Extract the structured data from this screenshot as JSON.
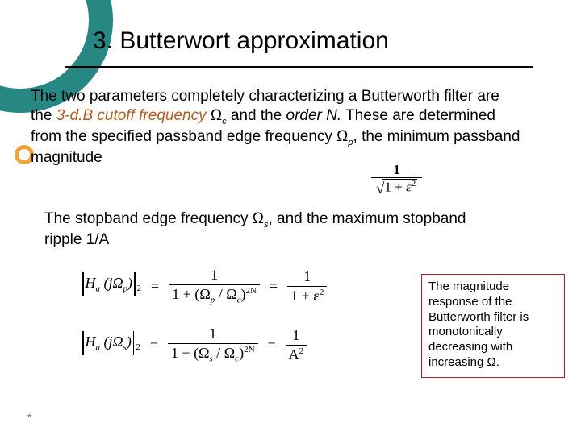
{
  "colors": {
    "teal": "#278783",
    "orange_ring": "#f1a23a",
    "rule": "#000000",
    "callout_border": "#b71d1f",
    "emph_text": "#b85b18",
    "footnote": "#6a6a6a",
    "background": "#ffffff"
  },
  "title": "3. Butterwort approximation",
  "para1": {
    "t1": "The two parameters completely characterizing a Butterworth filter are the ",
    "em1": "3-d.B cutoff frequency",
    "t2": " Ω",
    "sub_c": "c",
    "t3": " and the ",
    "em2": "order N.",
    "t4": " These are determined from the specified passband edge frequency Ω",
    "sub_p": "p",
    "t5": ", the minimum passband magnitude"
  },
  "frac_inline": {
    "numerator": "1",
    "denominator_prefix": "1 + ",
    "denominator_eps": "ε",
    "denominator_exp": "2"
  },
  "para2": {
    "t1": "The stopband edge frequency Ω",
    "sub_s": "s",
    "t2": ", and the maximum stopband ripple 1/A"
  },
  "eq1": {
    "H": "H",
    "a": "a",
    "arg": "jΩ",
    "argsub": "p",
    "exp_outer": "2",
    "rhs1_num": "1",
    "rhs1_den_a": "1 + (Ω",
    "rhs1_den_p": "p",
    "rhs1_den_mid": " / Ω",
    "rhs1_den_c": "c",
    "rhs1_den_b": ")",
    "rhs1_den_exp": "2N",
    "rhs2_num": "1",
    "rhs2_den_a": "1 + ε",
    "rhs2_den_exp": "2"
  },
  "eq2": {
    "H": "H",
    "a": "a",
    "arg": "jΩ",
    "argsub": "s",
    "exp_outer": "2",
    "rhs1_num": "1",
    "rhs1_den_a": "1 + (Ω",
    "rhs1_den_s": "s",
    "rhs1_den_mid": " / Ω",
    "rhs1_den_c": "c",
    "rhs1_den_b": ")",
    "rhs1_den_exp": "2N",
    "rhs2_num": "1",
    "rhs2_den_a": "A",
    "rhs2_den_exp": "2"
  },
  "callout": "The magnitude response of the Butterworth filter is monotonically decreasing with increasing Ω.",
  "footnote": "*"
}
